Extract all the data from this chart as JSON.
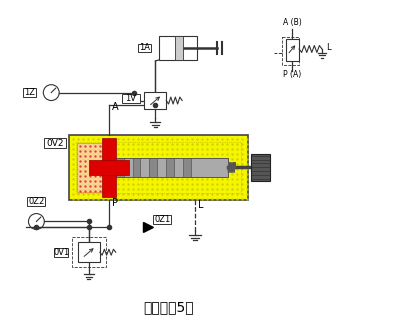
{
  "title": "减压阀（5）",
  "title_fontsize": 10,
  "valve_bg": "#f5f500",
  "valve_border": "#444444",
  "red_color": "#dd0000",
  "gray_color": "#aaaaaa",
  "dark_gray": "#555555",
  "line_color": "#333333",
  "label_1A": "1A",
  "label_1Z": "1Z",
  "label_1V": "1V",
  "label_0V2": "0V2",
  "label_0Z2": "0Z2",
  "label_0V1": "0V1",
  "label_0Z1": "0Z1",
  "label_A": "A",
  "label_P": "P",
  "label_L": "L",
  "label_AB": "A (B)",
  "label_PA": "P (A)"
}
